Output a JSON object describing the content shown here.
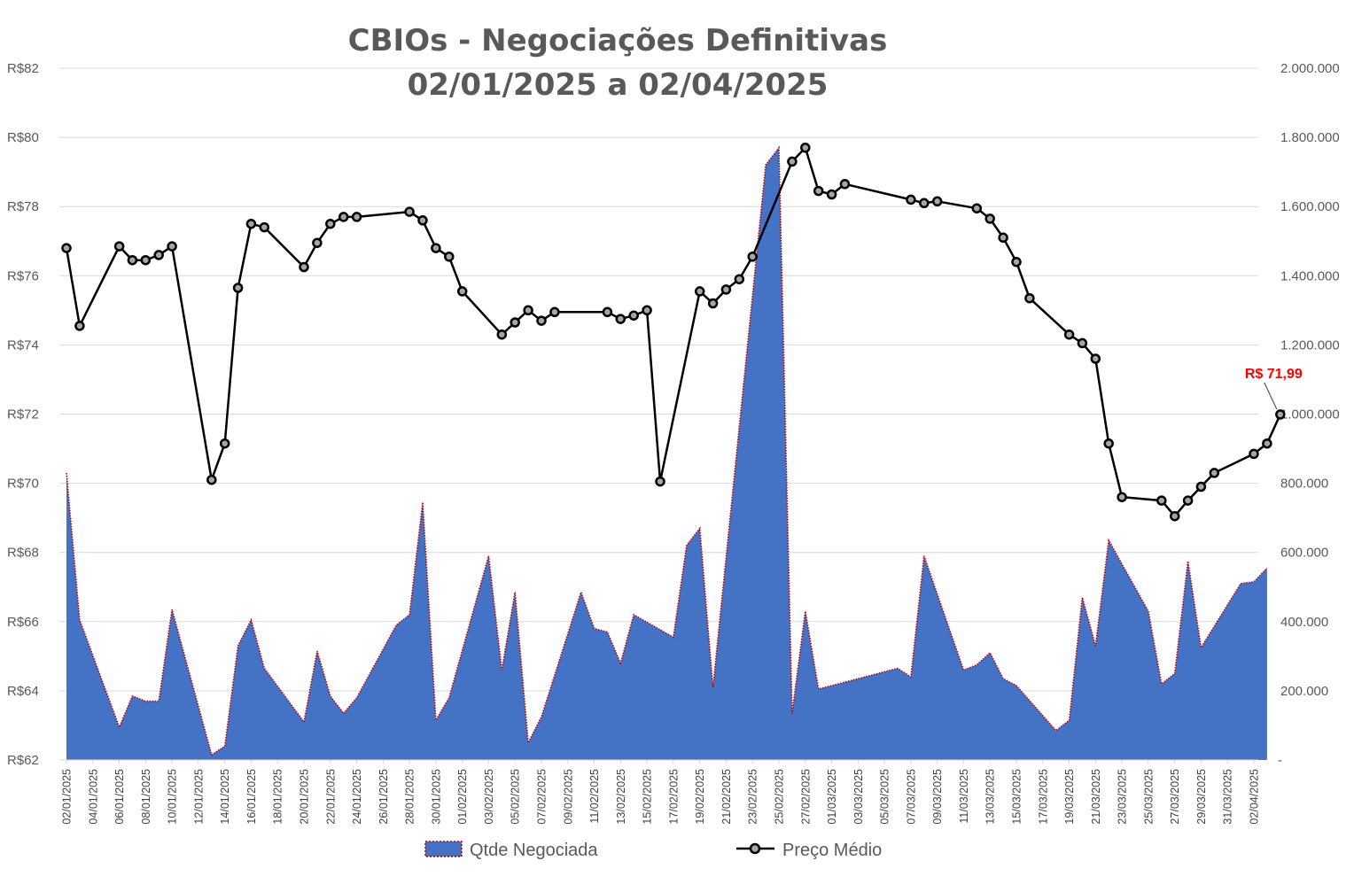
{
  "chart_data": {
    "type": "line",
    "title": "CBIOs - Negociações Definitivas",
    "subtitle": "02/01/2025 a 02/04/2025",
    "y_left": {
      "ylim": [
        62,
        82
      ],
      "ticks": [
        62,
        64,
        66,
        68,
        70,
        72,
        74,
        76,
        78,
        80,
        82
      ],
      "tick_labels": [
        "R$62",
        "R$64",
        "R$66",
        "R$68",
        "R$70",
        "R$72",
        "R$74",
        "R$76",
        "R$78",
        "R$80",
        "R$82"
      ]
    },
    "y_right": {
      "ylim": [
        0,
        2000000
      ],
      "ticks": [
        0,
        200000,
        400000,
        600000,
        800000,
        1000000,
        1200000,
        1400000,
        1600000,
        1800000,
        2000000
      ],
      "tick_labels": [
        "-",
        "200.000",
        "400.000",
        "600.000",
        "800.000",
        "1.000.000",
        "1.200.000",
        "1.400.000",
        "1.600.000",
        "1.800.000",
        "2.000.000"
      ]
    },
    "x_range": [
      "02/01/2025",
      "02/04/2025"
    ],
    "x_tick_labels": [
      "02/01/2025",
      "04/01/2025",
      "06/01/2025",
      "08/01/2025",
      "10/01/2025",
      "12/01/2025",
      "14/01/2025",
      "16/01/2025",
      "18/01/2025",
      "20/01/2025",
      "22/01/2025",
      "24/01/2025",
      "26/01/2025",
      "28/01/2025",
      "30/01/2025",
      "01/02/2025",
      "03/02/2025",
      "05/02/2025",
      "07/02/2025",
      "09/02/2025",
      "11/02/2025",
      "13/02/2025",
      "15/02/2025",
      "17/02/2025",
      "19/02/2025",
      "21/02/2025",
      "23/02/2025",
      "25/02/2025",
      "27/02/2025",
      "01/03/2025",
      "03/03/2025",
      "05/03/2025",
      "07/03/2025",
      "09/03/2025",
      "11/03/2025",
      "13/03/2025",
      "15/03/2025",
      "17/03/2025",
      "19/03/2025",
      "21/03/2025",
      "23/03/2025",
      "25/03/2025",
      "27/03/2025",
      "29/03/2025",
      "31/03/2025",
      "02/04/2025"
    ],
    "grid": true,
    "legend_position": "bottom",
    "series": [
      {
        "name": "Qtde Negociada",
        "type": "area",
        "axis": "right",
        "color": "#4472c4",
        "edge_color": "#c00000",
        "points": [
          [
            "02/01/2025",
            830000
          ],
          [
            "03/01/2025",
            405000
          ],
          [
            "06/01/2025",
            95000
          ],
          [
            "07/01/2025",
            185000
          ],
          [
            "08/01/2025",
            170000
          ],
          [
            "09/01/2025",
            170000
          ],
          [
            "10/01/2025",
            435000
          ],
          [
            "13/01/2025",
            15000
          ],
          [
            "14/01/2025",
            40000
          ],
          [
            "15/01/2025",
            330000
          ],
          [
            "16/01/2025",
            405000
          ],
          [
            "17/01/2025",
            265000
          ],
          [
            "20/01/2025",
            110000
          ],
          [
            "21/01/2025",
            315000
          ],
          [
            "22/01/2025",
            185000
          ],
          [
            "23/01/2025",
            135000
          ],
          [
            "24/01/2025",
            180000
          ],
          [
            "27/01/2025",
            390000
          ],
          [
            "28/01/2025",
            420000
          ],
          [
            "29/01/2025",
            745000
          ],
          [
            "30/01/2025",
            115000
          ],
          [
            "31/01/2025",
            180000
          ],
          [
            "03/02/2025",
            590000
          ],
          [
            "04/02/2025",
            260000
          ],
          [
            "05/02/2025",
            485000
          ],
          [
            "06/02/2025",
            50000
          ],
          [
            "07/02/2025",
            125000
          ],
          [
            "10/02/2025",
            485000
          ],
          [
            "11/02/2025",
            380000
          ],
          [
            "12/02/2025",
            370000
          ],
          [
            "13/02/2025",
            280000
          ],
          [
            "14/02/2025",
            420000
          ],
          [
            "17/02/2025",
            355000
          ],
          [
            "18/02/2025",
            620000
          ],
          [
            "19/02/2025",
            670000
          ],
          [
            "20/02/2025",
            210000
          ],
          [
            "24/02/2025",
            1720000
          ],
          [
            "25/02/2025",
            1770000
          ],
          [
            "26/02/2025",
            135000
          ],
          [
            "27/02/2025",
            430000
          ],
          [
            "28/02/2025",
            205000
          ],
          [
            "06/03/2025",
            265000
          ],
          [
            "07/03/2025",
            240000
          ],
          [
            "08/03/2025",
            590000
          ],
          [
            "11/03/2025",
            260000
          ],
          [
            "12/03/2025",
            275000
          ],
          [
            "13/03/2025",
            310000
          ],
          [
            "14/03/2025",
            235000
          ],
          [
            "15/03/2025",
            215000
          ],
          [
            "18/03/2025",
            85000
          ],
          [
            "19/03/2025",
            115000
          ],
          [
            "20/03/2025",
            470000
          ],
          [
            "21/03/2025",
            330000
          ],
          [
            "22/03/2025",
            635000
          ],
          [
            "25/03/2025",
            430000
          ],
          [
            "26/03/2025",
            220000
          ],
          [
            "27/03/2025",
            250000
          ],
          [
            "28/03/2025",
            575000
          ],
          [
            "29/03/2025",
            325000
          ],
          [
            "01/04/2025",
            510000
          ],
          [
            "02/04/2025",
            515000
          ],
          [
            "03/04/2025",
            555000
          ]
        ]
      },
      {
        "name": "Preço Médio",
        "type": "line",
        "axis": "left",
        "color": "#000000",
        "marker_fill": "#a6a6a6",
        "points": [
          [
            "02/01/2025",
            76.8
          ],
          [
            "03/01/2025",
            74.55
          ],
          [
            "06/01/2025",
            76.85
          ],
          [
            "07/01/2025",
            76.45
          ],
          [
            "08/01/2025",
            76.45
          ],
          [
            "09/01/2025",
            76.6
          ],
          [
            "10/01/2025",
            76.85
          ],
          [
            "13/01/2025",
            70.1
          ],
          [
            "14/01/2025",
            71.15
          ],
          [
            "15/01/2025",
            75.65
          ],
          [
            "16/01/2025",
            77.5
          ],
          [
            "17/01/2025",
            77.4
          ],
          [
            "20/01/2025",
            76.25
          ],
          [
            "21/01/2025",
            76.95
          ],
          [
            "22/01/2025",
            77.5
          ],
          [
            "23/01/2025",
            77.7
          ],
          [
            "24/01/2025",
            77.7
          ],
          [
            "28/01/2025",
            77.85
          ],
          [
            "29/01/2025",
            77.6
          ],
          [
            "30/01/2025",
            76.8
          ],
          [
            "31/01/2025",
            76.55
          ],
          [
            "01/02/2025",
            75.55
          ],
          [
            "04/02/2025",
            74.3
          ],
          [
            "05/02/2025",
            74.65
          ],
          [
            "06/02/2025",
            75.0
          ],
          [
            "07/02/2025",
            74.7
          ],
          [
            "08/02/2025",
            74.95
          ],
          [
            "12/02/2025",
            74.95
          ],
          [
            "13/02/2025",
            74.75
          ],
          [
            "14/02/2025",
            74.85
          ],
          [
            "15/02/2025",
            75.0
          ],
          [
            "16/02/2025",
            70.05
          ],
          [
            "19/02/2025",
            75.55
          ],
          [
            "20/02/2025",
            75.2
          ],
          [
            "21/02/2025",
            75.6
          ],
          [
            "22/02/2025",
            75.9
          ],
          [
            "23/02/2025",
            76.55
          ],
          [
            "26/02/2025",
            79.3
          ],
          [
            "27/02/2025",
            79.7
          ],
          [
            "28/02/2025",
            78.45
          ],
          [
            "01/03/2025",
            78.35
          ],
          [
            "02/03/2025",
            78.65
          ],
          [
            "07/03/2025",
            78.2
          ],
          [
            "08/03/2025",
            78.1
          ],
          [
            "09/03/2025",
            78.15
          ],
          [
            "12/03/2025",
            77.95
          ],
          [
            "13/03/2025",
            77.65
          ],
          [
            "14/03/2025",
            77.1
          ],
          [
            "15/03/2025",
            76.4
          ],
          [
            "16/03/2025",
            75.35
          ],
          [
            "19/03/2025",
            74.3
          ],
          [
            "20/03/2025",
            74.05
          ],
          [
            "21/03/2025",
            73.6
          ],
          [
            "22/03/2025",
            71.15
          ],
          [
            "23/03/2025",
            69.6
          ],
          [
            "26/03/2025",
            69.5
          ],
          [
            "27/03/2025",
            69.05
          ],
          [
            "28/03/2025",
            69.5
          ],
          [
            "29/03/2025",
            69.9
          ],
          [
            "30/03/2025",
            70.3
          ],
          [
            "02/04/2025",
            70.85
          ],
          [
            "03/04/2025",
            71.15
          ],
          [
            "04/04/2025",
            71.99
          ]
        ]
      }
    ],
    "annotation": {
      "text": "R$ 71,99",
      "color": "#ff0000"
    }
  }
}
